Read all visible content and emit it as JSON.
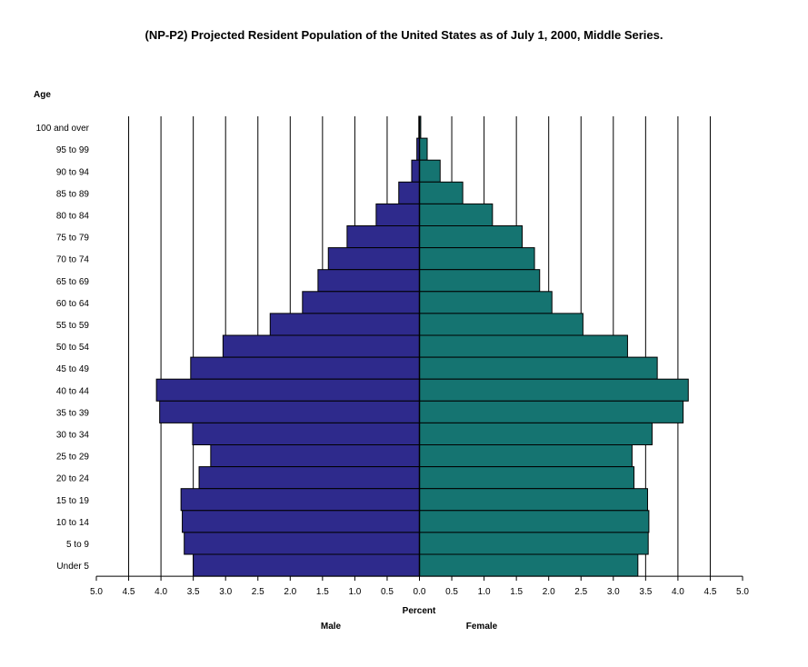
{
  "colors": {
    "male": "#2e2a8c",
    "female": "#157471",
    "grid": "#000000"
  },
  "chart_data": {
    "type": "bar",
    "orientation": "horizontal-population-pyramid",
    "title": "(NP-P2)  Projected Resident Population of the United States as of July 1, 2000, Middle Series.",
    "ylabel": "Age",
    "xlabel": "Percent",
    "male_label": "Male",
    "female_label": "Female",
    "categories": [
      "100 and over",
      "95 to 99",
      "90 to 94",
      "85 to 89",
      "80 to 84",
      "75 to 79",
      "70 to 74",
      "65 to 69",
      "60 to 64",
      "55 to 59",
      "50 to 54",
      "45 to 49",
      "40 to 44",
      "35 to 39",
      "30 to 34",
      "25 to 29",
      "20 to 24",
      "15 to 19",
      "10 to 14",
      "5 to 9",
      "Under 5"
    ],
    "series": [
      {
        "name": "Male",
        "values": [
          0.01,
          0.04,
          0.12,
          0.32,
          0.67,
          1.12,
          1.41,
          1.57,
          1.81,
          2.31,
          3.04,
          3.54,
          4.07,
          4.02,
          3.51,
          3.23,
          3.41,
          3.69,
          3.67,
          3.64,
          3.5
        ]
      },
      {
        "name": "Female",
        "values": [
          0.02,
          0.12,
          0.32,
          0.67,
          1.13,
          1.59,
          1.78,
          1.86,
          2.05,
          2.53,
          3.22,
          3.68,
          4.16,
          4.08,
          3.6,
          3.29,
          3.32,
          3.53,
          3.55,
          3.54,
          3.38
        ]
      }
    ],
    "xticks": [
      "5.0",
      "4.5",
      "4.0",
      "3.5",
      "3.0",
      "2.5",
      "2.0",
      "1.5",
      "1.0",
      "0.5",
      "0.0",
      "0.5",
      "1.0",
      "1.5",
      "2.0",
      "2.5",
      "3.0",
      "3.5",
      "4.0",
      "4.5",
      "5.0"
    ],
    "xlim": [
      -5.0,
      5.0
    ],
    "grid": true
  }
}
